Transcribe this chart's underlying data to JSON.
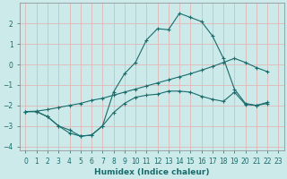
{
  "xlabel": "Humidex (Indice chaleur)",
  "bg_color": "#cceaea",
  "grid_color": "#e0b8b8",
  "line_color": "#1a6b6b",
  "xlim": [
    -0.5,
    23.5
  ],
  "ylim": [
    -4.2,
    3.0
  ],
  "xticks": [
    0,
    1,
    2,
    3,
    4,
    5,
    6,
    7,
    8,
    9,
    10,
    11,
    12,
    13,
    14,
    15,
    16,
    17,
    18,
    19,
    20,
    21,
    22,
    23
  ],
  "yticks": [
    -4,
    -3,
    -2,
    -1,
    0,
    1,
    2
  ],
  "curve1_x": [
    0,
    1,
    2,
    3,
    4,
    5,
    6,
    7,
    8,
    9,
    10,
    11,
    12,
    13,
    14,
    15,
    16,
    17,
    18,
    19,
    20,
    21,
    22
  ],
  "curve1_y": [
    -2.3,
    -2.3,
    -2.55,
    -3.0,
    -3.35,
    -3.5,
    -3.45,
    -3.0,
    -2.35,
    -1.9,
    -1.6,
    -1.5,
    -1.45,
    -1.3,
    -1.3,
    -1.35,
    -1.55,
    -1.7,
    -1.8,
    -1.35,
    -1.95,
    -2.0,
    -1.9
  ],
  "curve2_x": [
    0,
    1,
    2,
    3,
    4,
    5,
    6,
    7,
    8,
    9,
    10,
    11,
    12,
    13,
    14,
    15,
    16,
    17,
    18,
    19,
    20,
    21,
    22
  ],
  "curve2_y": [
    -2.3,
    -2.28,
    -2.2,
    -2.1,
    -2.0,
    -1.9,
    -1.75,
    -1.65,
    -1.5,
    -1.35,
    -1.2,
    -1.05,
    -0.9,
    -0.75,
    -0.6,
    -0.45,
    -0.28,
    -0.1,
    0.1,
    0.3,
    0.1,
    -0.15,
    -0.35
  ],
  "curve3_x": [
    0,
    1,
    2,
    3,
    4,
    5,
    6,
    7,
    8,
    9,
    10,
    11,
    12,
    13,
    14,
    15,
    16,
    17,
    18,
    19,
    20,
    21,
    22
  ],
  "curve3_y": [
    -2.3,
    -2.3,
    -2.55,
    -3.0,
    -3.2,
    -3.5,
    -3.45,
    -3.0,
    -1.35,
    -0.45,
    0.1,
    1.2,
    1.75,
    1.7,
    2.5,
    2.3,
    2.1,
    1.4,
    0.3,
    -1.2,
    -1.9,
    -2.0,
    -1.85
  ]
}
